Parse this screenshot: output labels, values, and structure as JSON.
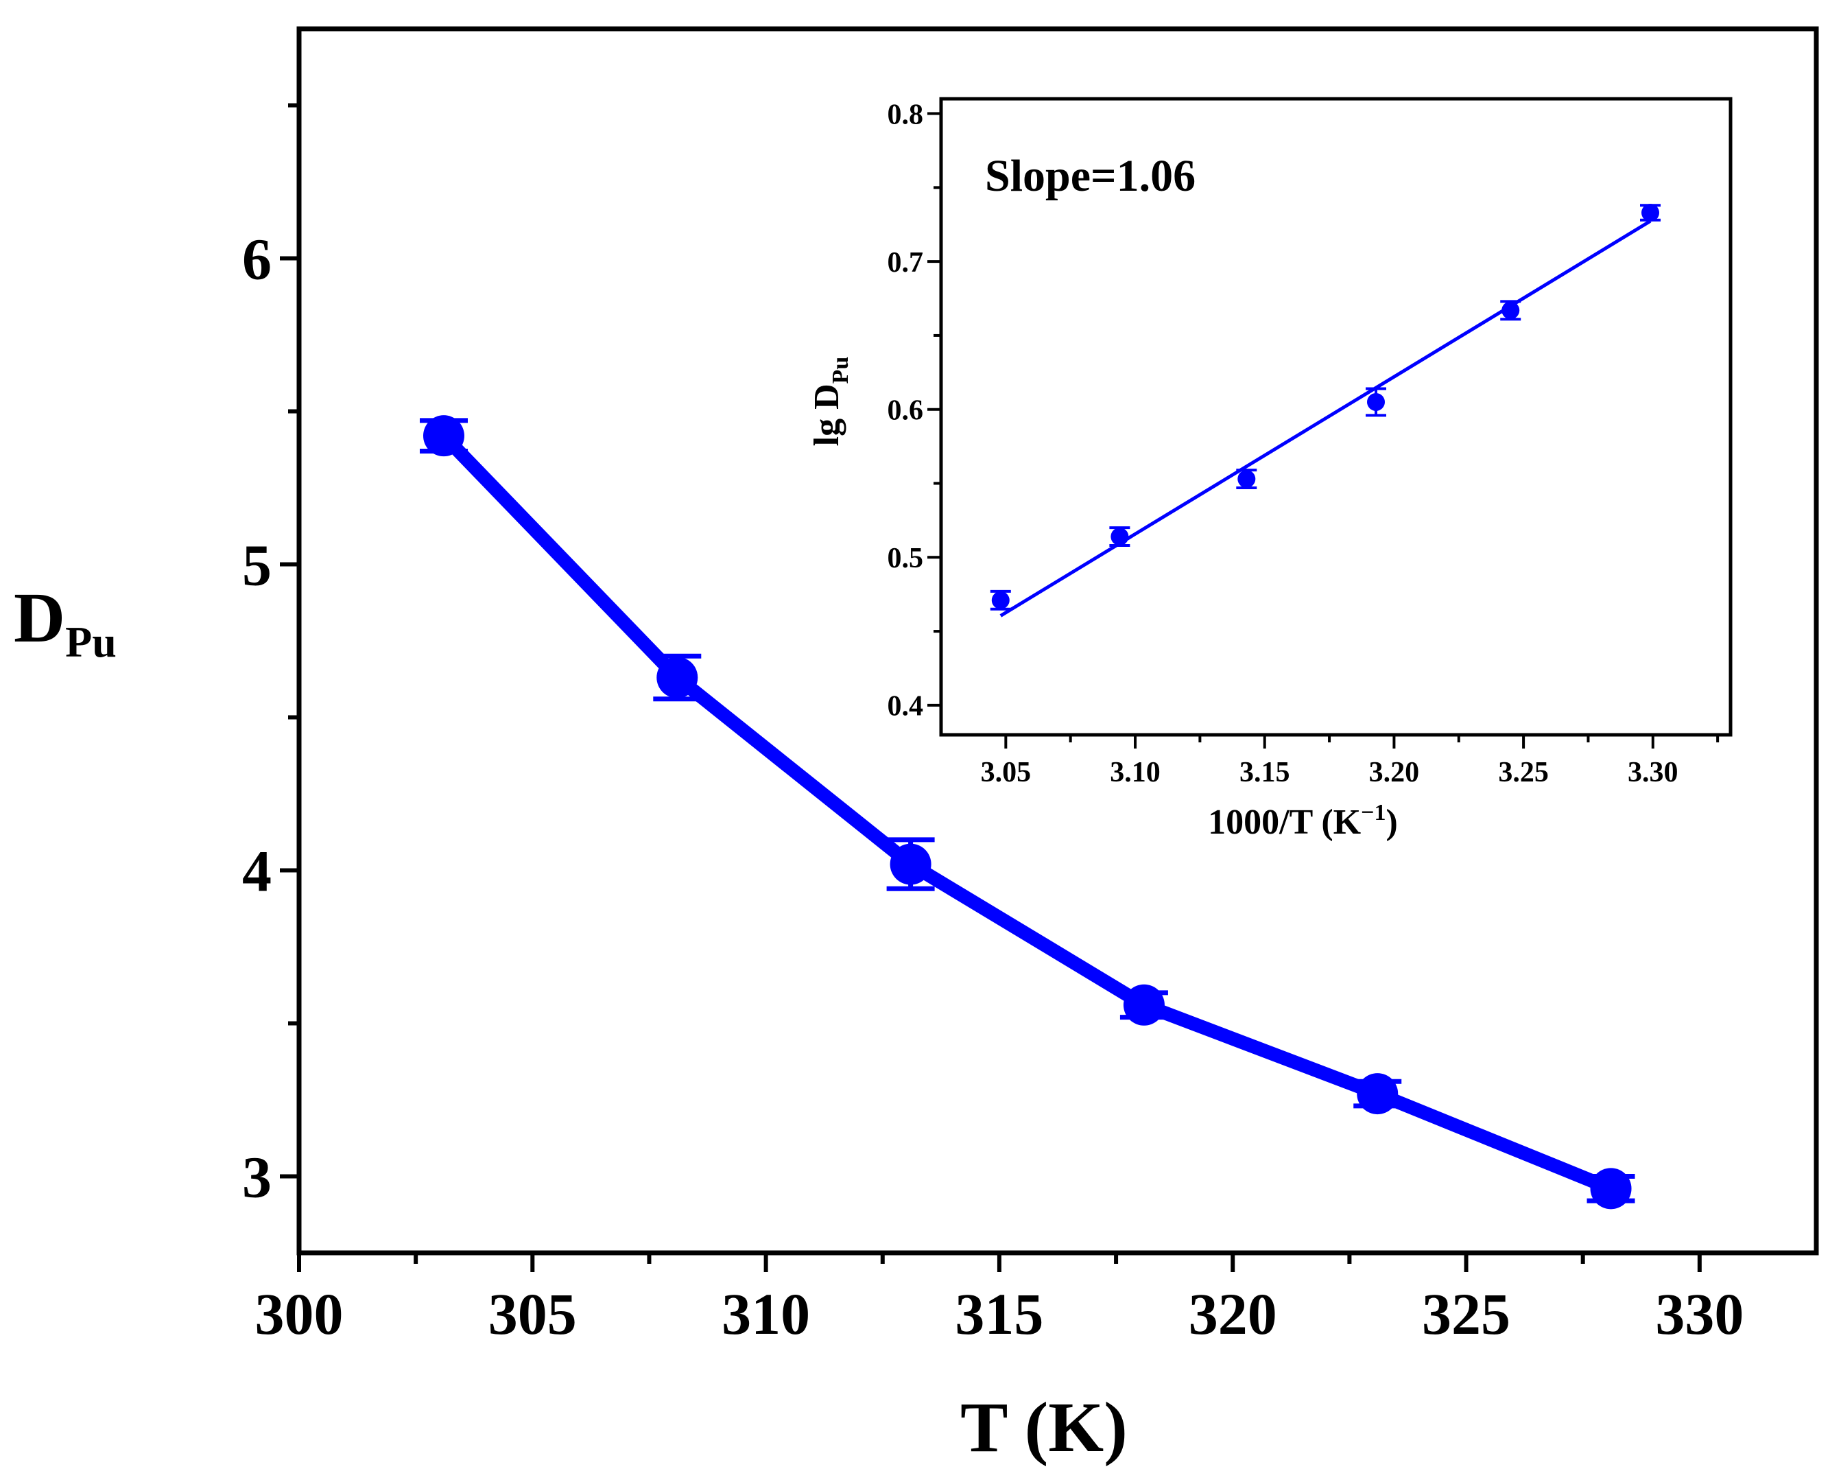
{
  "chart_data": [
    {
      "id": "main",
      "type": "line",
      "title": "",
      "xlabel": "T (K)",
      "ylabel": "D",
      "ylabel_sub": "Pu",
      "xlim": [
        300,
        332.5
      ],
      "ylim": [
        2.75,
        6.75
      ],
      "xticks": [
        300,
        305,
        310,
        315,
        320,
        325,
        330
      ],
      "xtick_labels": [
        "300",
        "305",
        "310",
        "315",
        "320",
        "325",
        "330"
      ],
      "yticks": [
        3,
        4,
        5,
        6
      ],
      "ytick_labels": [
        "3",
        "4",
        "5",
        "6"
      ],
      "series": [
        {
          "name": "D_Pu",
          "color": "#0000ff",
          "x": [
            303.1,
            308.1,
            313.1,
            318.1,
            323.1,
            328.1
          ],
          "y": [
            5.42,
            4.63,
            4.02,
            3.56,
            3.27,
            2.96
          ],
          "err": [
            0.05,
            0.07,
            0.08,
            0.04,
            0.04,
            0.04
          ]
        }
      ]
    },
    {
      "id": "inset",
      "type": "scatter",
      "title": "",
      "xlabel": "1000/T (K",
      "xlabel_sup": "−1",
      "xlabel_close": ")",
      "ylabel": "lg D",
      "ylabel_sub": "Pu",
      "xlim": [
        3.025,
        3.33
      ],
      "ylim": [
        0.38,
        0.81
      ],
      "xticks": [
        3.05,
        3.1,
        3.15,
        3.2,
        3.25,
        3.3
      ],
      "xtick_labels": [
        "3.05",
        "3.10",
        "3.15",
        "3.20",
        "3.25",
        "3.30"
      ],
      "yticks": [
        0.4,
        0.5,
        0.6,
        0.7,
        0.8
      ],
      "ytick_labels": [
        "0.4",
        "0.5",
        "0.6",
        "0.7",
        "0.8"
      ],
      "annotation": "Slope=1.06",
      "series": [
        {
          "name": "lg D_Pu",
          "color": "#0000ff",
          "x": [
            3.048,
            3.094,
            3.143,
            3.193,
            3.245,
            3.299
          ],
          "y": [
            0.471,
            0.514,
            0.553,
            0.605,
            0.667,
            0.733
          ],
          "err": [
            0.006,
            0.006,
            0.006,
            0.009,
            0.006,
            0.005
          ]
        }
      ],
      "fit": {
        "x": [
          3.048,
          3.299
        ],
        "y": [
          0.4605,
          0.7273
        ],
        "color": "#0000ff"
      }
    }
  ]
}
